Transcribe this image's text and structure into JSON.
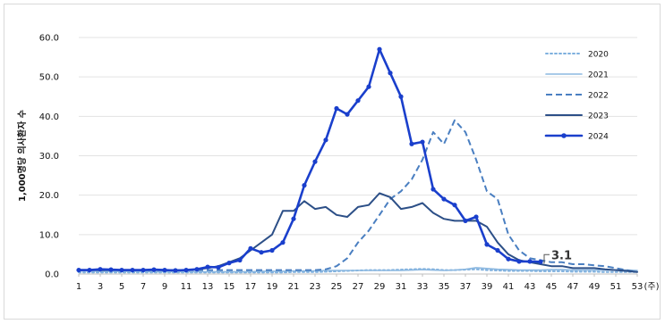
{
  "chart_data": {
    "type": "line",
    "ylabel": "1,000명당 의사환자 수",
    "xlabel": "(주)",
    "ylim": [
      0,
      60
    ],
    "y_ticks": [
      0,
      10,
      20,
      30,
      40,
      50,
      60
    ],
    "y_tick_labels": [
      "0.0",
      "10.0",
      "20.0",
      "30.0",
      "40.0",
      "50.0",
      "60.0"
    ],
    "x_ticks": [
      1,
      3,
      5,
      7,
      9,
      11,
      13,
      15,
      17,
      19,
      21,
      23,
      25,
      27,
      29,
      31,
      33,
      35,
      37,
      39,
      41,
      43,
      45,
      47,
      49,
      51,
      53
    ],
    "x_tick_labels": [
      "1",
      "3",
      "5",
      "7",
      "9",
      "11",
      "13",
      "15",
      "17",
      "19",
      "21",
      "23",
      "25",
      "27",
      "29",
      "31",
      "33",
      "35",
      "37",
      "39",
      "41",
      "43",
      "45",
      "47",
      "49",
      "51",
      "53"
    ],
    "x_unit_label": "(주)",
    "legend_position": "top-right",
    "grid": "horizontal",
    "annotation": {
      "text": "3.1",
      "x": 44,
      "y": 3.1
    },
    "series": [
      {
        "name": "2020",
        "style": "dotted",
        "color": "#7fb0de",
        "x": [
          1,
          2,
          3,
          4,
          5,
          6,
          7,
          8,
          9,
          10,
          11,
          12,
          13,
          14,
          15,
          16,
          17,
          18,
          19,
          20,
          21,
          22,
          23,
          24,
          25,
          26,
          27,
          28,
          29,
          30,
          31,
          32,
          33,
          34,
          35,
          36,
          37,
          38,
          39,
          40,
          41,
          42,
          43,
          44,
          45,
          46,
          47,
          48,
          49,
          50,
          51,
          52,
          53
        ],
        "values": [
          0.4,
          0.4,
          0.4,
          0.4,
          0.4,
          0.4,
          0.4,
          0.4,
          0.4,
          0.4,
          0.4,
          0.4,
          0.4,
          0.4,
          0.4,
          0.4,
          0.4,
          0.4,
          0.4,
          0.4,
          0.5,
          0.5,
          0.5,
          0.6,
          0.7,
          0.8,
          0.9,
          1.0,
          1.0,
          1.0,
          1.1,
          1.2,
          1.3,
          1.2,
          1.0,
          1.0,
          1.1,
          1.2,
          1.0,
          0.9,
          0.8,
          0.8,
          0.8,
          0.7,
          0.7,
          0.7,
          0.6,
          0.6,
          0.6,
          0.5,
          0.5,
          0.5,
          0.5
        ]
      },
      {
        "name": "2021",
        "style": "solid",
        "color": "#8cb8e0",
        "x": [
          1,
          2,
          3,
          4,
          5,
          6,
          7,
          8,
          9,
          10,
          11,
          12,
          13,
          14,
          15,
          16,
          17,
          18,
          19,
          20,
          21,
          22,
          23,
          24,
          25,
          26,
          27,
          28,
          29,
          30,
          31,
          32,
          33,
          34,
          35,
          36,
          37,
          38,
          39,
          40,
          41,
          42,
          43,
          44,
          45,
          46,
          47,
          48,
          49,
          50,
          51,
          52,
          53
        ],
        "values": [
          0.8,
          0.8,
          0.7,
          0.7,
          0.7,
          0.7,
          0.7,
          0.6,
          0.6,
          0.6,
          0.6,
          0.6,
          0.6,
          0.6,
          0.6,
          0.6,
          0.6,
          0.7,
          0.7,
          0.7,
          0.8,
          0.8,
          0.8,
          0.9,
          0.9,
          0.9,
          0.9,
          0.9,
          0.9,
          0.9,
          0.9,
          1.0,
          1.1,
          1.0,
          0.9,
          1.0,
          1.2,
          1.6,
          1.4,
          1.2,
          1.1,
          1.0,
          1.0,
          1.0,
          1.1,
          1.1,
          1.0,
          1.0,
          1.0,
          1.0,
          1.0,
          1.0,
          0.9
        ]
      },
      {
        "name": "2022",
        "style": "dashed",
        "color": "#4a7fc1",
        "x": [
          1,
          2,
          3,
          4,
          5,
          6,
          7,
          8,
          9,
          10,
          11,
          12,
          13,
          14,
          15,
          16,
          17,
          18,
          19,
          20,
          21,
          22,
          23,
          24,
          25,
          26,
          27,
          28,
          29,
          30,
          31,
          32,
          33,
          34,
          35,
          36,
          37,
          38,
          39,
          40,
          41,
          42,
          43,
          44,
          45,
          46,
          47,
          48,
          49,
          50,
          51,
          52,
          53
        ],
        "values": [
          1.0,
          1.0,
          1.0,
          1.0,
          1.0,
          1.0,
          1.0,
          1.0,
          1.0,
          1.0,
          1.0,
          1.0,
          1.0,
          1.0,
          1.0,
          1.0,
          1.0,
          1.0,
          1.0,
          1.0,
          1.0,
          1.0,
          1.0,
          1.2,
          2.0,
          4.0,
          8.0,
          11.0,
          15.0,
          19.0,
          21.0,
          24.0,
          29.0,
          36.0,
          33.0,
          39.0,
          36.0,
          29.0,
          21.0,
          19.0,
          10.0,
          6.0,
          4.0,
          3.5,
          3.0,
          3.0,
          2.5,
          2.5,
          2.2,
          2.0,
          1.5,
          1.0,
          0.5
        ]
      },
      {
        "name": "2023",
        "style": "solid",
        "color": "#2c4f87",
        "x": [
          1,
          2,
          3,
          4,
          5,
          6,
          7,
          8,
          9,
          10,
          11,
          12,
          13,
          14,
          15,
          16,
          17,
          18,
          19,
          20,
          21,
          22,
          23,
          24,
          25,
          26,
          27,
          28,
          29,
          30,
          31,
          32,
          33,
          34,
          35,
          36,
          37,
          38,
          39,
          40,
          41,
          42,
          43,
          44,
          45,
          46,
          47,
          48,
          49,
          50,
          51,
          52,
          53
        ],
        "values": [
          1.0,
          1.0,
          1.0,
          1.0,
          1.0,
          1.0,
          1.0,
          1.0,
          1.0,
          1.0,
          1.0,
          1.2,
          1.5,
          2.0,
          3.0,
          4.0,
          6.0,
          8.0,
          10.0,
          16.0,
          16.0,
          18.5,
          16.5,
          17.0,
          15.0,
          14.5,
          17.0,
          17.5,
          20.5,
          19.5,
          16.5,
          17.0,
          18.0,
          15.5,
          14.0,
          13.5,
          13.5,
          13.5,
          12.0,
          8.0,
          5.0,
          3.5,
          3.0,
          2.5,
          2.0,
          2.0,
          1.5,
          1.5,
          1.5,
          1.2,
          1.0,
          0.8,
          0.5
        ]
      },
      {
        "name": "2024",
        "style": "solid-markers",
        "color": "#1a3fcc",
        "x": [
          1,
          2,
          3,
          4,
          5,
          6,
          7,
          8,
          9,
          10,
          11,
          12,
          13,
          14,
          15,
          16,
          17,
          18,
          19,
          20,
          21,
          22,
          23,
          24,
          25,
          26,
          27,
          28,
          29,
          30,
          31,
          32,
          33,
          34,
          35,
          36,
          37,
          38,
          39,
          40,
          41,
          42,
          43,
          44
        ],
        "values": [
          1.0,
          1.0,
          1.2,
          1.1,
          1.0,
          1.0,
          1.0,
          1.1,
          1.0,
          0.9,
          1.0,
          1.2,
          1.8,
          1.7,
          2.8,
          3.5,
          6.5,
          5.5,
          6.0,
          8.0,
          14.0,
          22.5,
          28.5,
          34.0,
          42.0,
          40.5,
          44.0,
          47.5,
          57.0,
          51.0,
          45.0,
          33.0,
          33.5,
          21.5,
          19.0,
          17.5,
          13.5,
          14.5,
          7.5,
          6.0,
          3.8,
          3.2,
          3.2,
          3.1
        ]
      }
    ]
  }
}
